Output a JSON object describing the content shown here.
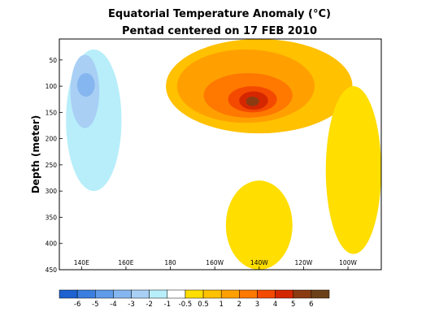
{
  "chart_data": {
    "type": "heatmap",
    "title": "Equatorial Temperature Anomaly (°C)",
    "subtitle": "Pentad centered on 17 FEB 2010",
    "xlabel": "",
    "ylabel": "Depth (meter)",
    "x_axis": {
      "range_deg_east": [
        130,
        275
      ],
      "tick_values_deg_east": [
        140,
        160,
        180,
        200,
        220,
        240,
        260
      ],
      "tick_labels": [
        "140E",
        "160E",
        "180",
        "160W",
        "140W",
        "120W",
        "100W"
      ]
    },
    "y_axis": {
      "range": [
        450,
        10
      ],
      "inverted": true,
      "tick_values": [
        50,
        100,
        150,
        200,
        250,
        300,
        350,
        400,
        450
      ],
      "tick_labels": [
        "50",
        "100",
        "150",
        "200",
        "250",
        "300",
        "350",
        "400",
        "450"
      ]
    },
    "colorbar": {
      "levels": [
        -6,
        -5,
        -4,
        -3,
        -2,
        -1,
        -0.5,
        0.5,
        1,
        2,
        3,
        4,
        5,
        6
      ],
      "labels": [
        "-6",
        "-5",
        "-4",
        "-3",
        "-2",
        "-1",
        "-0.5",
        "0.5",
        "1",
        "2",
        "3",
        "4",
        "5",
        "6"
      ],
      "colors": [
        "#1d62d0",
        "#3a7ee0",
        "#5f9be8",
        "#86b6ef",
        "#a9cff5",
        "#b7eefa",
        "#ffffff",
        "#ffde00",
        "#ffc100",
        "#ffa000",
        "#ff7800",
        "#f44a00",
        "#d42700",
        "#8b3b12",
        "#6b4018"
      ]
    },
    "anomaly_regions": [
      {
        "level": "< -1",
        "color": "#b7eefa",
        "x": [
          133,
          158
        ],
        "y": [
          30,
          300
        ]
      },
      {
        "level": "< -2",
        "color": "#a9cff5",
        "x": [
          135,
          148
        ],
        "y": [
          40,
          180
        ]
      },
      {
        "level": "< -3",
        "color": "#86b6ef",
        "x": [
          138,
          146
        ],
        "y": [
          75,
          120
        ]
      },
      {
        "level": "> 1",
        "color": "#ffc100",
        "x": [
          178,
          262
        ],
        "y": [
          10,
          190
        ]
      },
      {
        "level": "> 2",
        "color": "#ffa000",
        "x": [
          183,
          245
        ],
        "y": [
          30,
          170
        ]
      },
      {
        "level": "> 3",
        "color": "#ff7800",
        "x": [
          195,
          235
        ],
        "y": [
          75,
          160
        ]
      },
      {
        "level": "> 4",
        "color": "#f44a00",
        "x": [
          206,
          228
        ],
        "y": [
          100,
          150
        ]
      },
      {
        "level": "> 5",
        "color": "#d42700",
        "x": [
          211,
          224
        ],
        "y": [
          110,
          145
        ]
      },
      {
        "level": "> 6",
        "color": "#8b3b12",
        "x": [
          214,
          220
        ],
        "y": [
          120,
          138
        ]
      },
      {
        "level": "> 0.5",
        "color": "#ffde00",
        "x": [
          250,
          275
        ],
        "y": [
          100,
          420
        ]
      },
      {
        "level": "> 0.5",
        "color": "#ffde00",
        "x": [
          205,
          235
        ],
        "y": [
          280,
          450
        ]
      }
    ]
  }
}
